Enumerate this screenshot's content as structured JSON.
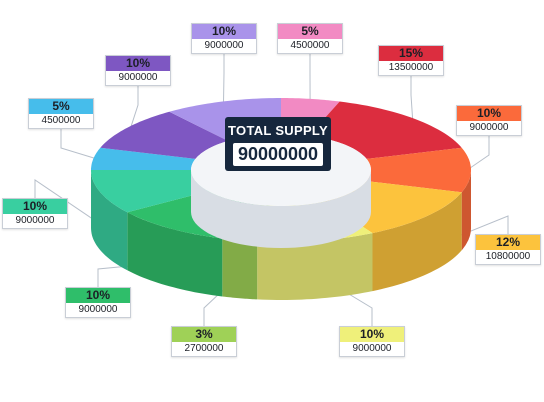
{
  "chart_data": {
    "type": "pie",
    "center_label": "TOTAL SUPPLY",
    "center_value": "90000000",
    "slices": [
      {
        "percent": "5%",
        "value": "4500000",
        "numeric": 4500000,
        "color": "#f28ac3"
      },
      {
        "percent": "15%",
        "value": "13500000",
        "numeric": 13500000,
        "color": "#dc2d3f"
      },
      {
        "percent": "10%",
        "value": "9000000",
        "numeric": 9000000,
        "color": "#fb6a3b"
      },
      {
        "percent": "12%",
        "value": "10800000",
        "numeric": 10800000,
        "color": "#fcc33d"
      },
      {
        "percent": "10%",
        "value": "9000000",
        "numeric": 9000000,
        "color": "#eff07a"
      },
      {
        "percent": "3%",
        "value": "2700000",
        "numeric": 2700000,
        "color": "#9fd157"
      },
      {
        "percent": "10%",
        "value": "9000000",
        "numeric": 9000000,
        "color": "#2fbe6a"
      },
      {
        "percent": "10%",
        "value": "9000000",
        "numeric": 9000000,
        "color": "#39cfa0"
      },
      {
        "percent": "5%",
        "value": "4500000",
        "numeric": 4500000,
        "color": "#46bdeb"
      },
      {
        "percent": "10%",
        "value": "9000000",
        "numeric": 9000000,
        "color": "#7e57c2"
      },
      {
        "percent": "10%",
        "value": "9000000",
        "numeric": 9000000,
        "color": "#a993ea"
      }
    ]
  }
}
